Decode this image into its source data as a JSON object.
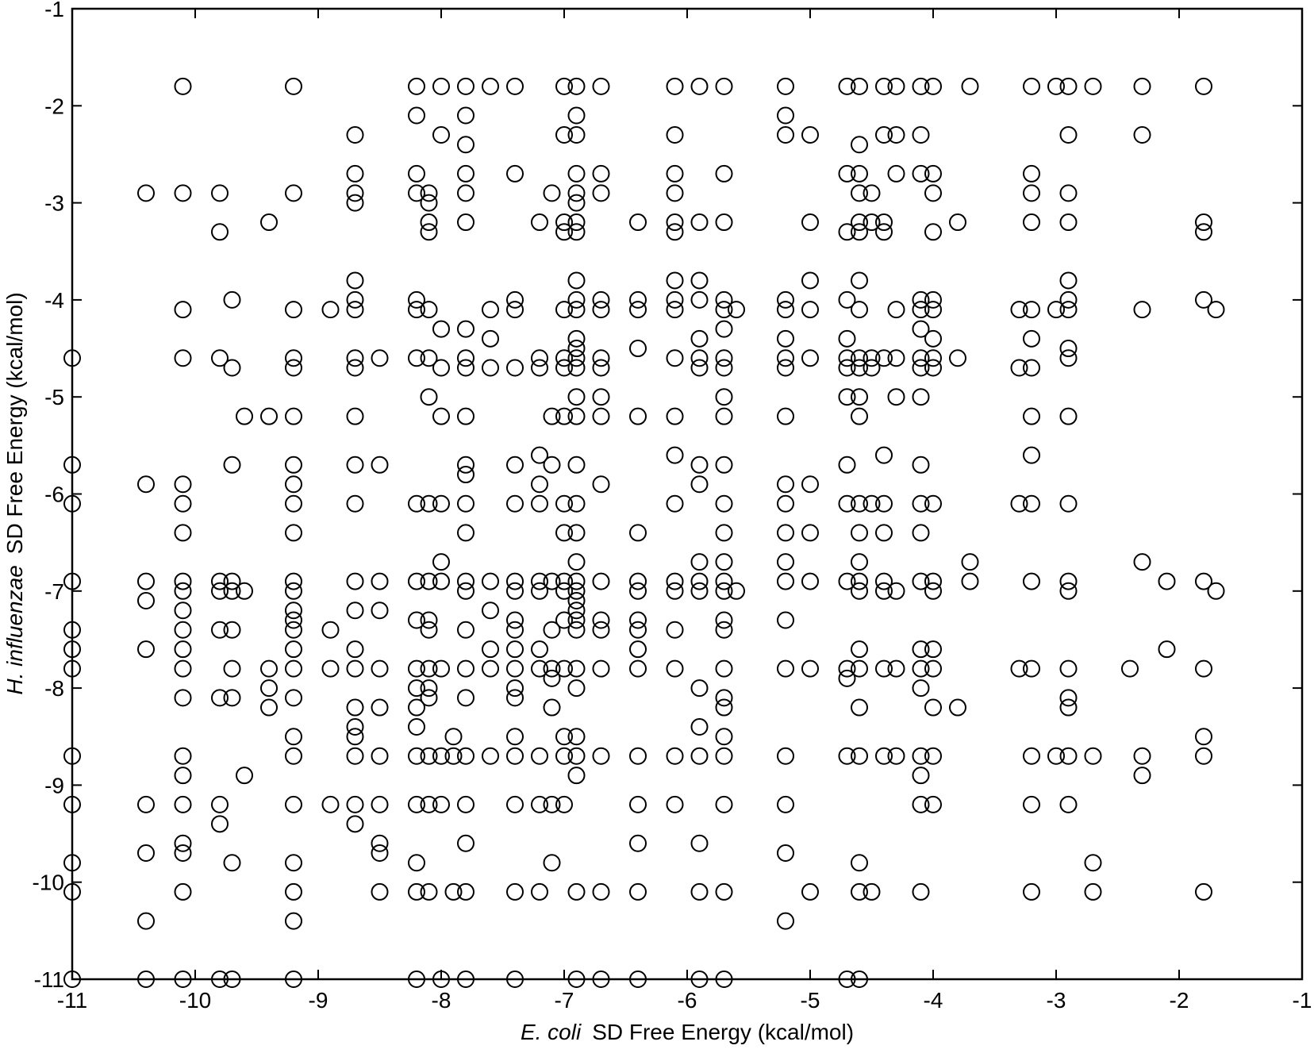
{
  "chart_data": {
    "type": "scatter",
    "xlabel": [
      "E. coli",
      "SD Free Energy (kcal/mol)"
    ],
    "ylabel": [
      "H. influenzae",
      "SD Free Energy (kcal/mol)"
    ],
    "xlim": [
      -11,
      -1
    ],
    "ylim": [
      -11,
      -1
    ],
    "xticks": [
      -11,
      -10,
      -9,
      -8,
      -7,
      -6,
      -5,
      -4,
      -3,
      -2,
      -1
    ],
    "yticks": [
      -11,
      -10,
      -9,
      -8,
      -7,
      -6,
      -5,
      -4,
      -3,
      -2,
      -1
    ],
    "color": "#000000",
    "grid": false,
    "columns": [
      {
        "x": -11,
        "y": [
          -4.6,
          -5.7,
          -6.1,
          -6.9,
          -7.4,
          -7.6,
          -7.8,
          -8.7,
          -9.2,
          -9.8,
          -10.1,
          -11
        ]
      },
      {
        "x": -10.4,
        "y": [
          -2.9,
          -5.9,
          -6.9,
          -7.1,
          -7.6,
          -9.2,
          -9.7,
          -10.4,
          -11
        ]
      },
      {
        "x": -10.1,
        "y": [
          -1.8,
          -2.9,
          -4.1,
          -4.6,
          -5.9,
          -6.1,
          -6.4,
          -6.9,
          -7.0,
          -7.2,
          -7.4,
          -7.6,
          -7.8,
          -8.1,
          -8.7,
          -8.9,
          -9.2,
          -9.6,
          -9.7,
          -10.1,
          -11
        ]
      },
      {
        "x": -9.8,
        "y": [
          -2.9,
          -3.3,
          -4.6,
          -6.9,
          -7.0,
          -7.4,
          -8.1,
          -9.2,
          -9.4,
          -11
        ]
      },
      {
        "x": -9.7,
        "y": [
          -4.0,
          -4.7,
          -5.7,
          -6.9,
          -7.0,
          -7.4,
          -7.8,
          -8.1,
          -9.8,
          -11
        ]
      },
      {
        "x": -9.6,
        "y": [
          -5.2,
          -7.0,
          -8.9
        ]
      },
      {
        "x": -9.4,
        "y": [
          -3.2,
          -5.2,
          -7.8,
          -8.0,
          -8.2
        ]
      },
      {
        "x": -9.2,
        "y": [
          -1.8,
          -2.9,
          -4.1,
          -4.6,
          -4.7,
          -5.2,
          -5.7,
          -5.9,
          -6.1,
          -6.4,
          -6.9,
          -7.0,
          -7.2,
          -7.3,
          -7.4,
          -7.6,
          -7.8,
          -8.1,
          -8.5,
          -8.7,
          -9.2,
          -9.8,
          -10.1,
          -10.4,
          -11
        ]
      },
      {
        "x": -8.9,
        "y": [
          -4.1,
          -7.4,
          -7.8,
          -9.2
        ]
      },
      {
        "x": -8.7,
        "y": [
          -2.3,
          -2.7,
          -2.9,
          -3.0,
          -3.8,
          -4.0,
          -4.1,
          -4.6,
          -4.7,
          -5.2,
          -5.7,
          -6.1,
          -6.9,
          -7.2,
          -7.6,
          -7.8,
          -8.2,
          -8.4,
          -8.5,
          -8.7,
          -9.2,
          -9.4
        ]
      },
      {
        "x": -8.5,
        "y": [
          -4.6,
          -5.7,
          -6.9,
          -7.2,
          -7.8,
          -8.2,
          -8.7,
          -9.2,
          -9.6,
          -9.7,
          -10.1
        ]
      },
      {
        "x": -8.2,
        "y": [
          -1.8,
          -2.1,
          -2.7,
          -2.9,
          -4.0,
          -4.1,
          -4.6,
          -6.1,
          -6.9,
          -7.3,
          -7.8,
          -8.0,
          -8.2,
          -8.4,
          -8.7,
          -9.2,
          -9.8,
          -10.1,
          -11
        ]
      },
      {
        "x": -8.1,
        "y": [
          -2.9,
          -3.0,
          -3.2,
          -3.3,
          -4.1,
          -4.6,
          -5.0,
          -6.1,
          -6.9,
          -7.3,
          -7.4,
          -7.8,
          -8.0,
          -8.1,
          -8.7,
          -9.2,
          -10.1
        ]
      },
      {
        "x": -8.0,
        "y": [
          -1.8,
          -2.3,
          -4.3,
          -4.7,
          -5.2,
          -6.1,
          -6.7,
          -6.9,
          -7.8,
          -8.7,
          -9.2,
          -11
        ]
      },
      {
        "x": -7.9,
        "y": [
          -8.5,
          -8.7,
          -10.1
        ]
      },
      {
        "x": -7.8,
        "y": [
          -1.8,
          -2.1,
          -2.4,
          -2.7,
          -2.9,
          -3.2,
          -4.3,
          -4.6,
          -4.7,
          -5.2,
          -5.7,
          -5.8,
          -6.1,
          -6.4,
          -6.9,
          -7.0,
          -7.4,
          -7.8,
          -8.1,
          -8.7,
          -9.2,
          -9.6,
          -10.1,
          -11
        ]
      },
      {
        "x": -7.6,
        "y": [
          -1.8,
          -4.1,
          -4.4,
          -4.7,
          -6.9,
          -7.2,
          -7.6,
          -7.8,
          -8.7
        ]
      },
      {
        "x": -7.4,
        "y": [
          -1.8,
          -2.7,
          -4.0,
          -4.1,
          -4.7,
          -5.7,
          -6.1,
          -6.9,
          -7.0,
          -7.3,
          -7.4,
          -7.6,
          -7.8,
          -8.0,
          -8.1,
          -8.5,
          -8.7,
          -9.2,
          -10.1,
          -11
        ]
      },
      {
        "x": -7.2,
        "y": [
          -3.2,
          -4.6,
          -4.7,
          -5.6,
          -5.9,
          -6.1,
          -6.9,
          -7.0,
          -7.6,
          -7.8,
          -8.7,
          -9.2,
          -10.1
        ]
      },
      {
        "x": -7.1,
        "y": [
          -2.9,
          -5.2,
          -5.7,
          -6.9,
          -7.4,
          -7.8,
          -7.9,
          -8.2,
          -9.2,
          -9.8
        ]
      },
      {
        "x": -7.0,
        "y": [
          -1.8,
          -2.3,
          -3.2,
          -3.3,
          -4.1,
          -4.6,
          -4.7,
          -5.2,
          -6.1,
          -6.4,
          -6.9,
          -7.0,
          -7.3,
          -7.8,
          -8.5,
          -8.7,
          -9.2
        ]
      },
      {
        "x": -6.9,
        "y": [
          -1.8,
          -2.1,
          -2.3,
          -2.7,
          -2.9,
          -3.0,
          -3.2,
          -3.3,
          -3.8,
          -4.0,
          -4.1,
          -4.4,
          -4.5,
          -4.6,
          -4.7,
          -5.0,
          -5.2,
          -5.7,
          -6.1,
          -6.4,
          -6.7,
          -6.9,
          -7.0,
          -7.1,
          -7.2,
          -7.3,
          -7.4,
          -7.8,
          -8.0,
          -8.5,
          -8.7,
          -8.9,
          -10.1,
          -11
        ]
      },
      {
        "x": -6.7,
        "y": [
          -1.8,
          -2.7,
          -2.9,
          -4.0,
          -4.1,
          -4.6,
          -4.7,
          -5.0,
          -5.2,
          -5.9,
          -6.9,
          -7.3,
          -7.4,
          -7.8,
          -8.7,
          -10.1,
          -11
        ]
      },
      {
        "x": -6.4,
        "y": [
          -3.2,
          -4.0,
          -4.1,
          -4.5,
          -5.2,
          -6.4,
          -6.9,
          -7.0,
          -7.3,
          -7.4,
          -7.6,
          -7.8,
          -8.7,
          -9.2,
          -9.6,
          -10.1,
          -11
        ]
      },
      {
        "x": -6.1,
        "y": [
          -1.8,
          -2.3,
          -2.7,
          -2.9,
          -3.2,
          -3.3,
          -3.8,
          -4.0,
          -4.1,
          -4.6,
          -5.2,
          -5.6,
          -6.1,
          -6.9,
          -7.0,
          -7.4,
          -7.8,
          -8.7,
          -9.2
        ]
      },
      {
        "x": -5.9,
        "y": [
          -1.8,
          -3.2,
          -3.8,
          -4.0,
          -4.4,
          -4.6,
          -4.7,
          -5.7,
          -5.9,
          -6.7,
          -6.9,
          -7.0,
          -8.0,
          -8.4,
          -8.7,
          -9.6,
          -10.1,
          -11
        ]
      },
      {
        "x": -5.7,
        "y": [
          -1.8,
          -2.7,
          -3.2,
          -4.0,
          -4.1,
          -4.3,
          -4.6,
          -4.7,
          -5.0,
          -5.2,
          -5.7,
          -6.1,
          -6.4,
          -6.7,
          -6.9,
          -7.0,
          -7.3,
          -7.4,
          -7.8,
          -8.1,
          -8.2,
          -8.5,
          -8.7,
          -9.2,
          -10.1,
          -11
        ]
      },
      {
        "x": -5.6,
        "y": [
          -4.1,
          -7.0
        ]
      },
      {
        "x": -5.2,
        "y": [
          -1.8,
          -2.1,
          -2.3,
          -4.0,
          -4.1,
          -4.4,
          -4.6,
          -4.7,
          -5.2,
          -5.9,
          -6.1,
          -6.4,
          -6.7,
          -6.9,
          -7.3,
          -7.8,
          -8.7,
          -9.2,
          -9.7,
          -10.4
        ]
      },
      {
        "x": -5.0,
        "y": [
          -2.3,
          -3.2,
          -3.8,
          -4.1,
          -4.6,
          -5.9,
          -6.4,
          -6.9,
          -7.8,
          -10.1
        ]
      },
      {
        "x": -4.7,
        "y": [
          -1.8,
          -2.7,
          -3.3,
          -4.0,
          -4.4,
          -4.6,
          -4.7,
          -5.0,
          -5.7,
          -6.1,
          -6.9,
          -7.8,
          -7.9,
          -8.7,
          -11
        ]
      },
      {
        "x": -4.6,
        "y": [
          -1.8,
          -2.4,
          -2.7,
          -2.9,
          -3.2,
          -3.3,
          -3.8,
          -4.1,
          -4.6,
          -4.7,
          -5.0,
          -5.2,
          -6.1,
          -6.4,
          -6.7,
          -6.9,
          -7.0,
          -7.6,
          -7.8,
          -8.2,
          -8.7,
          -9.8,
          -10.1,
          -11
        ]
      },
      {
        "x": -4.5,
        "y": [
          -2.9,
          -3.2,
          -4.6,
          -4.7,
          -6.1,
          -10.1
        ]
      },
      {
        "x": -4.4,
        "y": [
          -1.8,
          -2.3,
          -3.2,
          -3.3,
          -4.6,
          -5.6,
          -6.1,
          -6.4,
          -6.9,
          -7.0,
          -7.8,
          -8.7
        ]
      },
      {
        "x": -4.3,
        "y": [
          -1.8,
          -2.3,
          -2.7,
          -4.1,
          -4.6,
          -5.0,
          -7.0,
          -7.8,
          -8.7
        ]
      },
      {
        "x": -4.1,
        "y": [
          -1.8,
          -2.3,
          -2.7,
          -4.0,
          -4.1,
          -4.3,
          -4.6,
          -4.7,
          -5.0,
          -5.7,
          -6.1,
          -6.4,
          -6.9,
          -7.6,
          -7.8,
          -8.0,
          -8.7,
          -8.9,
          -9.2,
          -10.1
        ]
      },
      {
        "x": -4.0,
        "y": [
          -1.8,
          -2.7,
          -2.9,
          -3.3,
          -4.0,
          -4.1,
          -4.4,
          -4.6,
          -4.7,
          -6.1,
          -6.9,
          -7.0,
          -7.6,
          -7.8,
          -8.2,
          -8.7,
          -9.2
        ]
      },
      {
        "x": -3.8,
        "y": [
          -3.2,
          -4.6,
          -8.2
        ]
      },
      {
        "x": -3.7,
        "y": [
          -1.8,
          -6.7,
          -6.9
        ]
      },
      {
        "x": -3.3,
        "y": [
          -4.1,
          -4.7,
          -6.1,
          -7.8
        ]
      },
      {
        "x": -3.2,
        "y": [
          -1.8,
          -2.7,
          -2.9,
          -3.2,
          -4.1,
          -4.4,
          -4.7,
          -5.2,
          -5.6,
          -6.1,
          -6.9,
          -7.8,
          -8.7,
          -9.2,
          -10.1
        ]
      },
      {
        "x": -3.0,
        "y": [
          -1.8,
          -4.1,
          -8.7
        ]
      },
      {
        "x": -2.9,
        "y": [
          -1.8,
          -2.3,
          -2.9,
          -3.2,
          -3.8,
          -4.0,
          -4.1,
          -4.5,
          -4.6,
          -5.2,
          -6.1,
          -6.9,
          -7.0,
          -7.8,
          -8.1,
          -8.2,
          -8.7,
          -9.2
        ]
      },
      {
        "x": -2.7,
        "y": [
          -1.8,
          -8.7,
          -9.8,
          -10.1
        ]
      },
      {
        "x": -2.4,
        "y": [
          -7.8
        ]
      },
      {
        "x": -2.3,
        "y": [
          -1.8,
          -2.3,
          -4.1,
          -6.7,
          -8.7,
          -8.9
        ]
      },
      {
        "x": -2.1,
        "y": [
          -6.9,
          -7.6
        ]
      },
      {
        "x": -1.8,
        "y": [
          -1.8,
          -3.2,
          -3.3,
          -4.0,
          -6.9,
          -7.8,
          -8.5,
          -8.7,
          -10.1
        ]
      },
      {
        "x": -1.7,
        "y": [
          -4.1,
          -7.0
        ]
      }
    ]
  }
}
